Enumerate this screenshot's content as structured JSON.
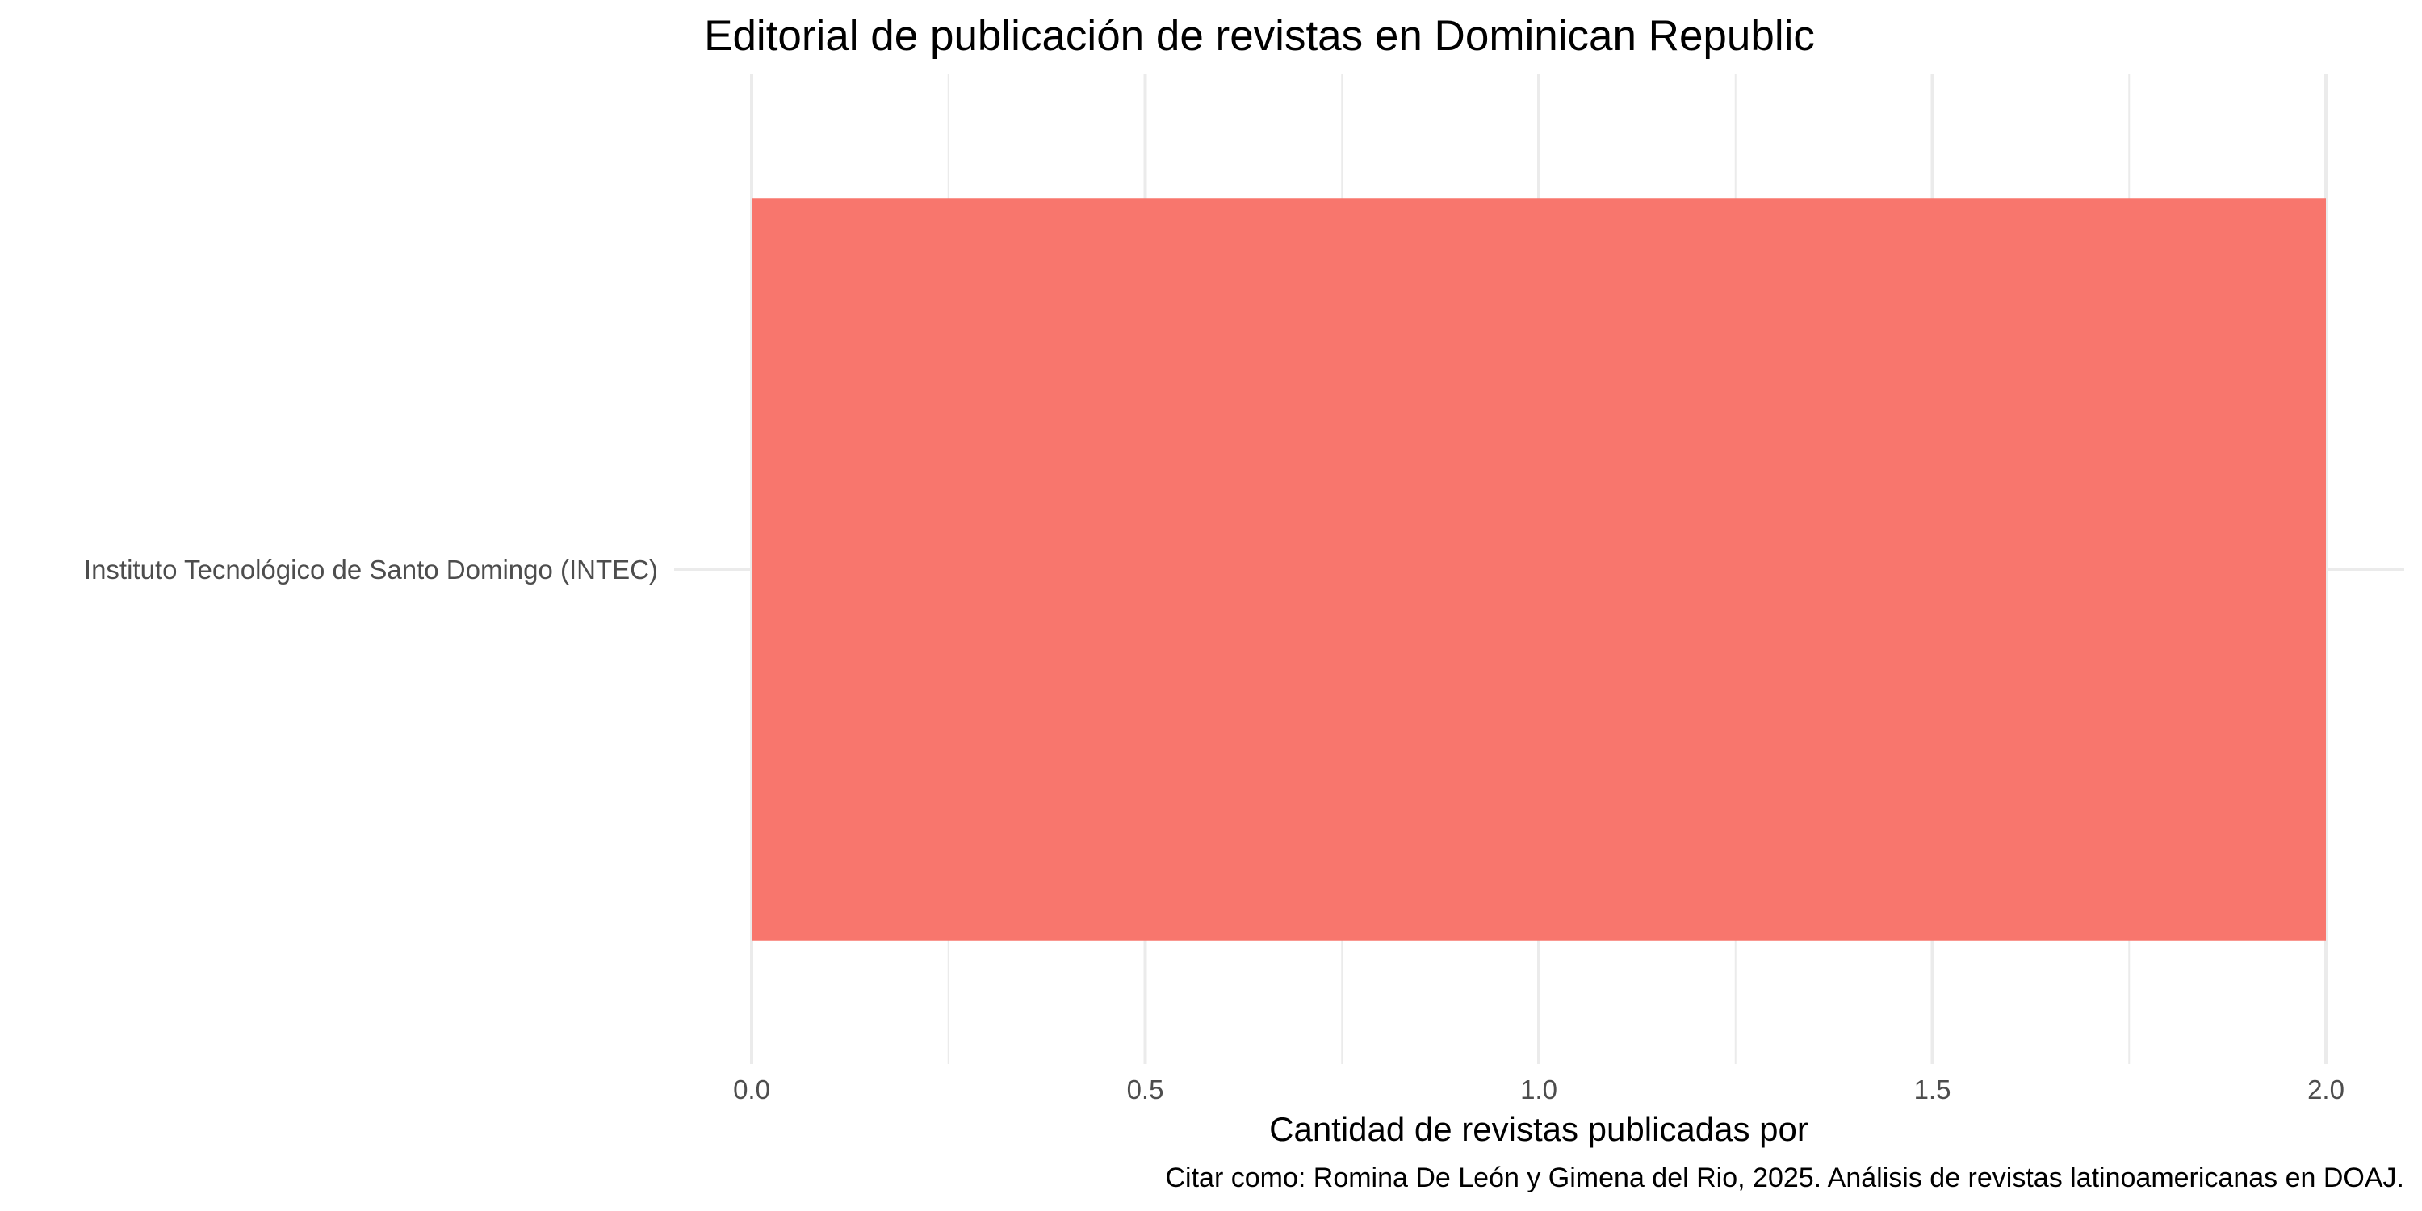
{
  "chart_data": {
    "type": "bar",
    "orientation": "horizontal",
    "title": "Editorial de publicación de revistas en Dominican Republic",
    "xlabel": "Cantidad de revistas publicadas por",
    "ylabel": "",
    "caption": "Citar como: Romina De León y Gimena del Rio, 2025. Análisis de revistas latinoamericanas en DOAJ.",
    "categories": [
      "Instituto Tecnológico de Santo Domingo (INTEC)"
    ],
    "values": [
      2
    ],
    "xlim": [
      0,
      2.1
    ],
    "x_ticks": [
      0,
      0.5,
      1,
      1.5,
      2
    ],
    "x_tick_labels": [
      "0.0",
      "0.5",
      "1.0",
      "1.5",
      "2.0"
    ],
    "grid": true,
    "legend": "none",
    "bar_color": "#F8766D",
    "grid_color": "#EBEBEB"
  }
}
